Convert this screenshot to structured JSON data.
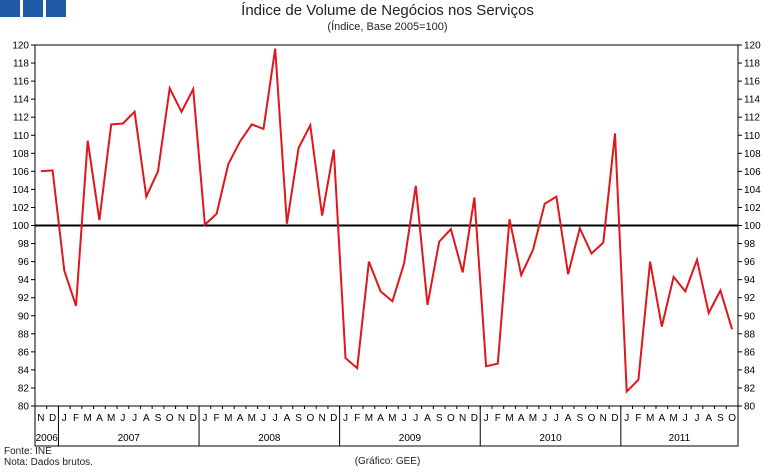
{
  "chart_data": {
    "type": "line",
    "title": "Índice de Volume de Negócios nos Serviços",
    "subtitle": "(Índice, Base 2005=100)",
    "ylim": [
      80,
      120
    ],
    "y_ticks": [
      80,
      82,
      84,
      86,
      88,
      90,
      92,
      94,
      96,
      98,
      100,
      102,
      104,
      106,
      108,
      110,
      112,
      114,
      116,
      118,
      120
    ],
    "reference_line": 100,
    "series_color": "#e0161b",
    "month_letters": [
      "N",
      "D",
      "J",
      "F",
      "M",
      "A",
      "M",
      "J",
      "J",
      "A",
      "S",
      "O",
      "N",
      "D",
      "J",
      "F",
      "M",
      "A",
      "M",
      "J",
      "J",
      "A",
      "S",
      "O",
      "N",
      "D",
      "J",
      "F",
      "M",
      "A",
      "M",
      "J",
      "J",
      "A",
      "S",
      "O",
      "N",
      "D",
      "J",
      "F",
      "M",
      "A",
      "M",
      "J",
      "J",
      "A",
      "S",
      "O",
      "N",
      "D",
      "J",
      "F",
      "M",
      "A",
      "M",
      "J",
      "J",
      "A",
      "S",
      "O"
    ],
    "years": [
      {
        "label": "2006",
        "months": 2
      },
      {
        "label": "2007",
        "months": 12
      },
      {
        "label": "2008",
        "months": 12
      },
      {
        "label": "2009",
        "months": 12
      },
      {
        "label": "2010",
        "months": 12
      },
      {
        "label": "2011",
        "months": 10
      }
    ],
    "values": [
      106.0,
      106.1,
      95.0,
      91.1,
      109.4,
      100.6,
      111.2,
      111.3,
      112.6,
      103.2,
      106.0,
      115.2,
      112.6,
      115.1,
      100.1,
      101.3,
      106.8,
      109.3,
      111.2,
      110.7,
      119.6,
      100.2,
      108.6,
      111.1,
      101.1,
      108.4,
      85.3,
      84.2,
      96.0,
      92.7,
      91.6,
      95.8,
      104.4,
      91.2,
      98.2,
      99.6,
      94.8,
      103.1,
      84.4,
      84.7,
      100.7,
      94.5,
      97.3,
      102.4,
      103.2,
      94.6,
      99.7,
      96.9,
      98.1,
      110.2,
      81.6,
      82.9,
      96.0,
      88.8,
      94.3,
      92.7,
      96.2,
      90.3,
      92.8,
      88.5
    ]
  },
  "footer": {
    "source": "Fonte: INE",
    "note": "Nota: Dados brutos.",
    "credit": "(Gráfico: GEE)"
  }
}
